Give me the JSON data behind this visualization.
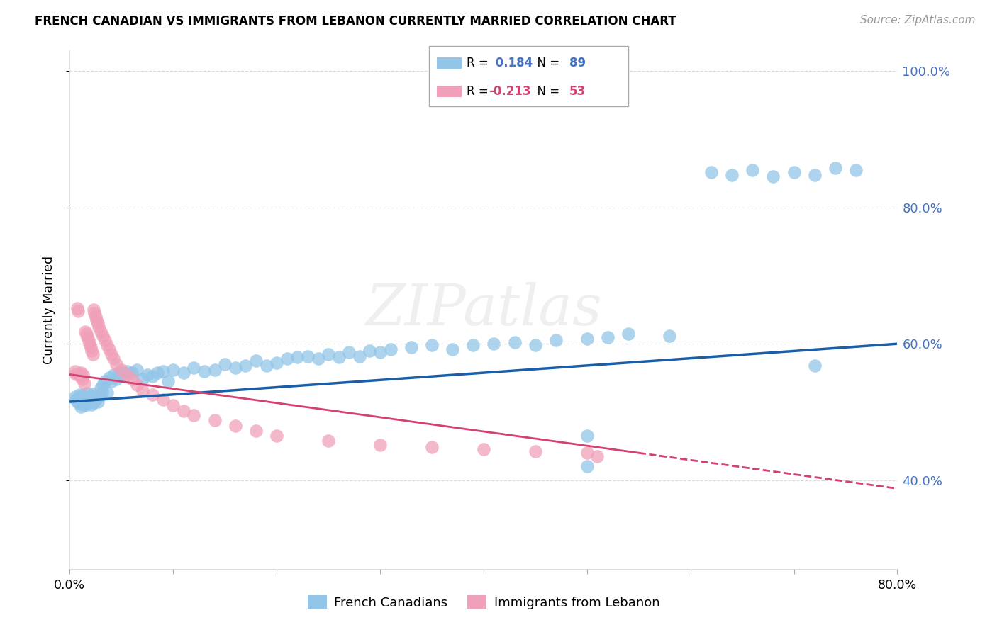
{
  "title": "FRENCH CANADIAN VS IMMIGRANTS FROM LEBANON CURRENTLY MARRIED CORRELATION CHART",
  "source": "Source: ZipAtlas.com",
  "ylabel": "Currently Married",
  "x_min": 0.0,
  "x_max": 0.8,
  "y_min": 0.27,
  "y_max": 1.03,
  "y_ticks": [
    0.4,
    0.6,
    0.8,
    1.0
  ],
  "y_tick_labels": [
    "40.0%",
    "60.0%",
    "80.0%",
    "100.0%"
  ],
  "x_ticks": [
    0.0,
    0.1,
    0.2,
    0.3,
    0.4,
    0.5,
    0.6,
    0.7,
    0.8
  ],
  "x_tick_labels": [
    "0.0%",
    "",
    "",
    "",
    "",
    "",
    "",
    "",
    "80.0%"
  ],
  "blue_color": "#92c5e8",
  "pink_color": "#f0a0b8",
  "blue_line_color": "#1a5ea8",
  "pink_line_color": "#d44070",
  "legend_blue_label": "French Canadians",
  "legend_pink_label": "Immigrants from Lebanon",
  "R_blue": 0.184,
  "N_blue": 89,
  "R_pink": -0.213,
  "N_pink": 53,
  "watermark": "ZIPatlas",
  "tick_color": "#4472c4",
  "grid_color": "#d8d8d8",
  "blue_x": [
    0.005,
    0.006,
    0.007,
    0.008,
    0.009,
    0.01,
    0.011,
    0.012,
    0.013,
    0.014,
    0.015,
    0.016,
    0.017,
    0.018,
    0.019,
    0.02,
    0.021,
    0.022,
    0.023,
    0.024,
    0.025,
    0.026,
    0.027,
    0.028,
    0.03,
    0.031,
    0.032,
    0.034,
    0.036,
    0.038,
    0.04,
    0.042,
    0.045,
    0.048,
    0.05,
    0.055,
    0.06,
    0.065,
    0.07,
    0.075,
    0.08,
    0.085,
    0.09,
    0.095,
    0.1,
    0.11,
    0.12,
    0.13,
    0.14,
    0.15,
    0.16,
    0.17,
    0.18,
    0.19,
    0.2,
    0.21,
    0.22,
    0.23,
    0.24,
    0.25,
    0.26,
    0.27,
    0.28,
    0.29,
    0.3,
    0.31,
    0.33,
    0.35,
    0.37,
    0.39,
    0.41,
    0.43,
    0.45,
    0.47,
    0.5,
    0.52,
    0.54,
    0.58,
    0.62,
    0.64,
    0.66,
    0.68,
    0.7,
    0.72,
    0.74,
    0.76,
    0.5,
    0.5,
    0.72
  ],
  "blue_y": [
    0.522,
    0.518,
    0.515,
    0.52,
    0.525,
    0.512,
    0.508,
    0.524,
    0.519,
    0.516,
    0.51,
    0.513,
    0.527,
    0.521,
    0.517,
    0.523,
    0.511,
    0.526,
    0.514,
    0.519,
    0.518,
    0.52,
    0.515,
    0.522,
    0.535,
    0.53,
    0.54,
    0.545,
    0.528,
    0.55,
    0.545,
    0.555,
    0.548,
    0.558,
    0.552,
    0.56,
    0.558,
    0.562,
    0.548,
    0.555,
    0.552,
    0.558,
    0.56,
    0.545,
    0.562,
    0.558,
    0.565,
    0.56,
    0.562,
    0.57,
    0.565,
    0.568,
    0.575,
    0.568,
    0.572,
    0.578,
    0.58,
    0.582,
    0.578,
    0.585,
    0.58,
    0.588,
    0.582,
    0.59,
    0.588,
    0.592,
    0.595,
    0.598,
    0.592,
    0.598,
    0.6,
    0.602,
    0.598,
    0.605,
    0.608,
    0.61,
    0.615,
    0.612,
    0.852,
    0.848,
    0.855,
    0.845,
    0.852,
    0.848,
    0.858,
    0.855,
    0.42,
    0.465,
    0.568
  ],
  "pink_x": [
    0.005,
    0.006,
    0.007,
    0.008,
    0.009,
    0.01,
    0.011,
    0.012,
    0.013,
    0.014,
    0.015,
    0.016,
    0.017,
    0.018,
    0.019,
    0.02,
    0.021,
    0.022,
    0.023,
    0.024,
    0.025,
    0.026,
    0.027,
    0.028,
    0.03,
    0.032,
    0.034,
    0.036,
    0.038,
    0.04,
    0.042,
    0.045,
    0.05,
    0.055,
    0.06,
    0.065,
    0.07,
    0.08,
    0.09,
    0.1,
    0.11,
    0.12,
    0.14,
    0.16,
    0.18,
    0.2,
    0.25,
    0.3,
    0.35,
    0.4,
    0.45,
    0.5,
    0.51
  ],
  "pink_y": [
    0.56,
    0.556,
    0.652,
    0.648,
    0.555,
    0.552,
    0.558,
    0.548,
    0.554,
    0.542,
    0.618,
    0.615,
    0.61,
    0.605,
    0.6,
    0.595,
    0.59,
    0.585,
    0.65,
    0.645,
    0.64,
    0.635,
    0.63,
    0.625,
    0.618,
    0.612,
    0.605,
    0.598,
    0.592,
    0.585,
    0.578,
    0.57,
    0.562,
    0.555,
    0.548,
    0.54,
    0.532,
    0.525,
    0.518,
    0.51,
    0.502,
    0.495,
    0.488,
    0.48,
    0.472,
    0.465,
    0.458,
    0.452,
    0.448,
    0.445,
    0.442,
    0.44,
    0.435
  ]
}
